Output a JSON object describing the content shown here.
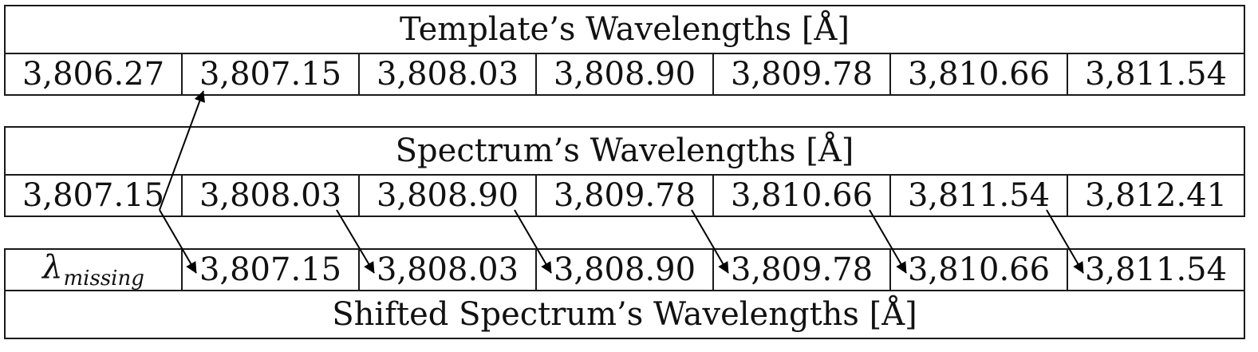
{
  "template": {
    "title": "Template’s Wavelengths [Å]",
    "values": [
      "3,806.27",
      "3,807.15",
      "3,808.03",
      "3,808.90",
      "3,809.78",
      "3,810.66",
      "3,811.54"
    ]
  },
  "spectrum": {
    "title": "Spectrum’s Wavelengths [Å]",
    "values": [
      "3,807.15",
      "3,808.03",
      "3,808.90",
      "3,809.78",
      "3,810.66",
      "3,811.54",
      "3,812.41"
    ]
  },
  "shifted": {
    "title": "Shifted Spectrum’s Wavelengths [Å]",
    "missing_symbol": "λ",
    "missing_subscript": "missing",
    "values": [
      "3,807.15",
      "3,808.03",
      "3,808.90",
      "3,809.78",
      "3,810.66",
      "3,811.54"
    ]
  },
  "arrow_color": "#000000"
}
